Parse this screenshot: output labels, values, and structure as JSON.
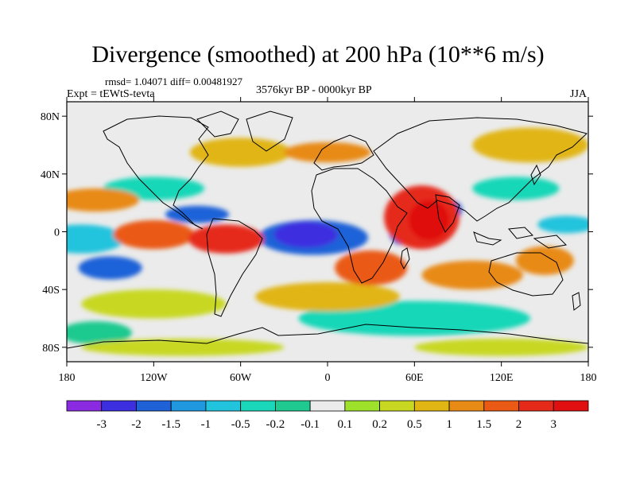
{
  "header": {
    "title": "Divergence (smoothed) at 200 hPa (10**6 m/s)",
    "stats": "rmsd= 1.04071 diff= 0.00481927",
    "experiment": "Expt = tEWtS-tevta",
    "period": "3576kyr BP - 0000kyr BP",
    "season": "JJA"
  },
  "map": {
    "projection": "cylindrical equidistant",
    "lon_range": [
      -180,
      180
    ],
    "lat_range": [
      -90,
      90
    ],
    "x_ticks": [
      {
        "value": -180,
        "label": "180"
      },
      {
        "value": -120,
        "label": "120W"
      },
      {
        "value": -60,
        "label": "60W"
      },
      {
        "value": 0,
        "label": "0"
      },
      {
        "value": 60,
        "label": "60E"
      },
      {
        "value": 120,
        "label": "120E"
      },
      {
        "value": 180,
        "label": "180"
      }
    ],
    "y_ticks": [
      {
        "value": 80,
        "label": "80N"
      },
      {
        "value": 40,
        "label": "40N"
      },
      {
        "value": 0,
        "label": "0"
      },
      {
        "value": -40,
        "label": "40S"
      },
      {
        "value": -80,
        "label": "80S"
      }
    ],
    "background_color": "#ebebeb"
  },
  "colorbar": {
    "levels": [
      "-3",
      "-2",
      "-1.5",
      "-1",
      "-0.5",
      "-0.2",
      "-0.1",
      "0.1",
      "0.2",
      "0.5",
      "1",
      "1.5",
      "2",
      "3"
    ],
    "colors": [
      "#8a2be2",
      "#3c2fe0",
      "#1f62d8",
      "#1f98e0",
      "#22c3dd",
      "#19d7b8",
      "#1fc98f",
      "#ebebeb",
      "#9ee12a",
      "#c8d820",
      "#e1b512",
      "#e88a16",
      "#ea5a14",
      "#e52a1a",
      "#e01010"
    ]
  },
  "chart_data": {
    "type": "filled-contour map",
    "variable": "Divergence (smoothed) at 200 hPa",
    "units": "10**6 m/s",
    "features": [
      {
        "lon": -15,
        "lat": -2,
        "value": -3,
        "rx": 22,
        "ry": 9
      },
      {
        "lon": -10,
        "lat": -4,
        "value": -2,
        "rx": 38,
        "ry": 12
      },
      {
        "lon": 50,
        "lat": 2,
        "value": -2,
        "rx": 8,
        "ry": 11
      },
      {
        "lon": 85,
        "lat": 15,
        "value": -2,
        "rx": 8,
        "ry": 7
      },
      {
        "lon": -90,
        "lat": 12,
        "value": -2,
        "rx": 22,
        "ry": 6
      },
      {
        "lon": -150,
        "lat": -25,
        "value": -2,
        "rx": 22,
        "ry": 8
      },
      {
        "lon": -170,
        "lat": -5,
        "value": -1,
        "rx": 30,
        "ry": 10
      },
      {
        "lon": 165,
        "lat": 5,
        "value": -1,
        "rx": 20,
        "ry": 6
      },
      {
        "lon": 130,
        "lat": 30,
        "value": -0.5,
        "rx": 30,
        "ry": 8
      },
      {
        "lon": -120,
        "lat": 30,
        "value": -0.5,
        "rx": 35,
        "ry": 8
      },
      {
        "lon": 60,
        "lat": -60,
        "value": -0.5,
        "rx": 80,
        "ry": 12
      },
      {
        "lon": -160,
        "lat": -70,
        "value": -0.2,
        "rx": 25,
        "ry": 8
      },
      {
        "lon": 70,
        "lat": 8,
        "value": 3,
        "rx": 14,
        "ry": 14
      },
      {
        "lon": 65,
        "lat": 10,
        "value": 2,
        "rx": 26,
        "ry": 22
      },
      {
        "lon": -70,
        "lat": -5,
        "value": 2,
        "rx": 26,
        "ry": 10
      },
      {
        "lon": -120,
        "lat": -2,
        "value": 1.5,
        "rx": 28,
        "ry": 10
      },
      {
        "lon": 30,
        "lat": -25,
        "value": 1.5,
        "rx": 25,
        "ry": 12
      },
      {
        "lon": 100,
        "lat": -30,
        "value": 1,
        "rx": 35,
        "ry": 10
      },
      {
        "lon": 150,
        "lat": -20,
        "value": 1,
        "rx": 20,
        "ry": 10
      },
      {
        "lon": -160,
        "lat": 22,
        "value": 1,
        "rx": 30,
        "ry": 8
      },
      {
        "lon": 0,
        "lat": 55,
        "value": 1,
        "rx": 30,
        "ry": 7
      },
      {
        "lon": 140,
        "lat": 60,
        "value": 0.5,
        "rx": 40,
        "ry": 12
      },
      {
        "lon": -60,
        "lat": 55,
        "value": 0.5,
        "rx": 35,
        "ry": 10
      },
      {
        "lon": 0,
        "lat": -45,
        "value": 0.5,
        "rx": 50,
        "ry": 10
      },
      {
        "lon": -120,
        "lat": -50,
        "value": 0.2,
        "rx": 50,
        "ry": 10
      },
      {
        "lon": -100,
        "lat": -80,
        "value": 0.2,
        "rx": 70,
        "ry": 6
      },
      {
        "lon": 120,
        "lat": -80,
        "value": 0.2,
        "rx": 60,
        "ry": 6
      }
    ]
  }
}
